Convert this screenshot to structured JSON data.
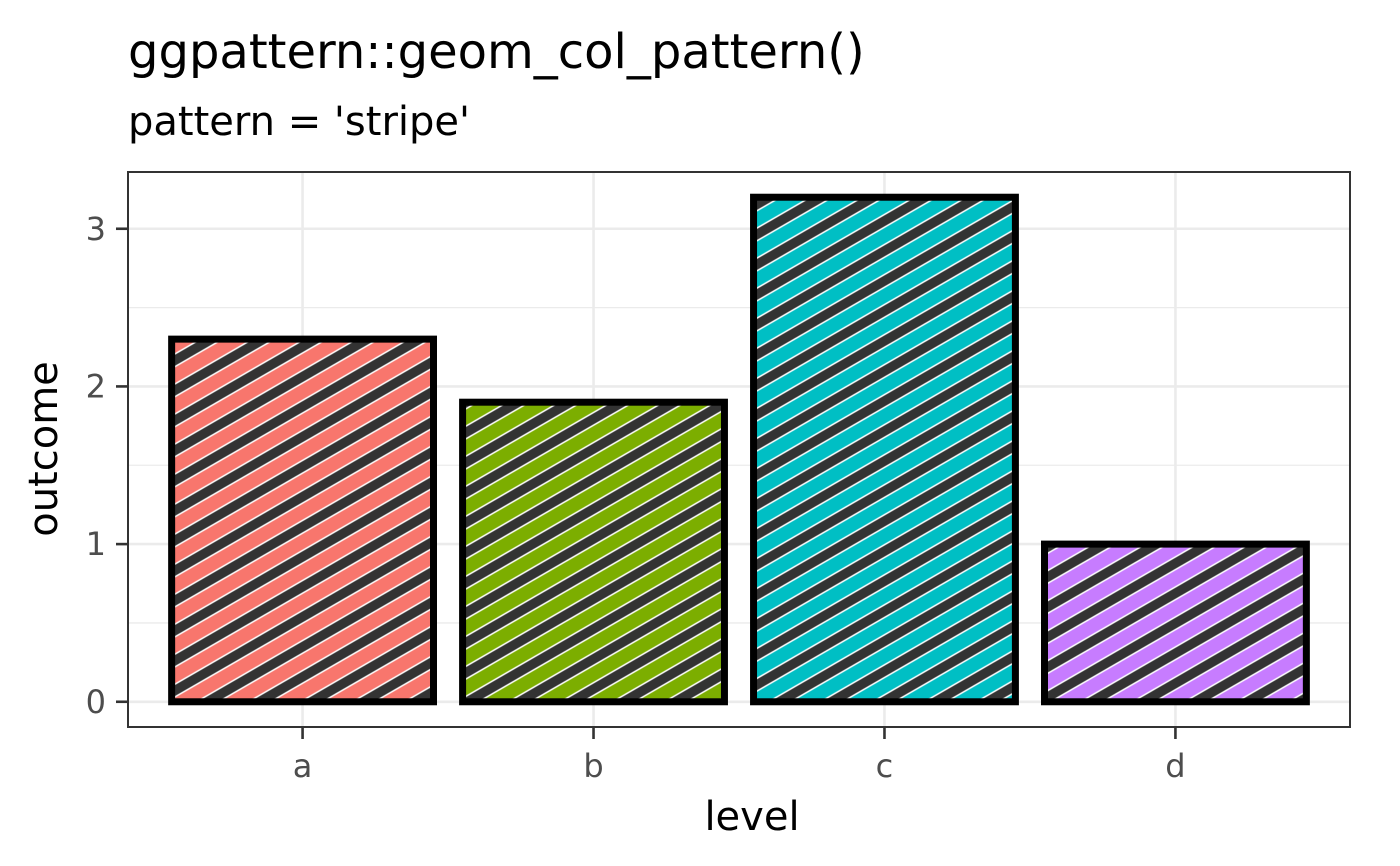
{
  "chart_data": {
    "type": "bar",
    "title": "ggpattern::geom_col_pattern()",
    "subtitle": "pattern = 'stripe'",
    "xlabel": "level",
    "ylabel": "outcome",
    "categories": [
      "a",
      "b",
      "c",
      "d"
    ],
    "values": [
      2.3,
      1.9,
      3.2,
      1.0
    ],
    "fill_colors": [
      "#F8766D",
      "#7CAE00",
      "#00BFC4",
      "#C77CFF"
    ],
    "pattern_color": "#333333",
    "pattern": "stripe",
    "yticks": [
      0,
      1,
      2,
      3
    ],
    "ylim": [
      -0.16,
      3.36
    ],
    "grid": true,
    "theme": "bw"
  }
}
